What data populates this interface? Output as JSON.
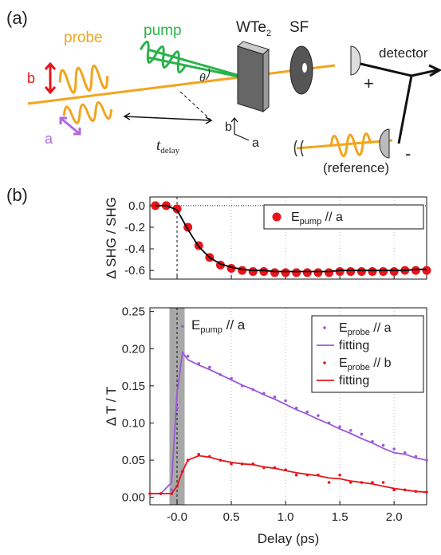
{
  "diagram": {
    "panel_label": "(a)",
    "probe": "probe",
    "pump": "pump",
    "sample": [
      "WTe",
      "2"
    ],
    "sf": "SF",
    "detector": "detector",
    "plus": "+",
    "minus": "-",
    "reference": "(reference)",
    "pol_b": "b",
    "pol_a": "a",
    "theta": "θ",
    "axis_b": "b",
    "axis_a": "a",
    "delay": [
      "t",
      "delay"
    ]
  },
  "panel_b_label": "(b)",
  "chart_data": [
    {
      "type": "line",
      "ylabel": "Δ SHG / SHG",
      "xlim": [
        -0.25,
        2.3
      ],
      "ylim": [
        -0.68,
        0.08
      ],
      "yticks": [
        {
          "value": 0,
          "label": "0.0"
        },
        -0.2,
        -0.4,
        -0.6
      ],
      "zero_line": true,
      "legend": "upper right",
      "x": [
        -0.2,
        -0.1,
        0.0,
        0.1,
        0.2,
        0.3,
        0.4,
        0.5,
        0.6,
        0.7,
        0.8,
        0.9,
        1.0,
        1.1,
        1.2,
        1.3,
        1.4,
        1.5,
        1.6,
        1.7,
        1.8,
        1.9,
        2.0,
        2.1,
        2.2,
        2.3
      ],
      "series": [
        {
          "name": [
            "E",
            "pump",
            " // a"
          ],
          "color": "#e8141a",
          "style": "markers",
          "values": [
            0.0,
            0.0,
            -0.03,
            -0.2,
            -0.37,
            -0.48,
            -0.55,
            -0.58,
            -0.6,
            -0.61,
            -0.61,
            -0.62,
            -0.62,
            -0.62,
            -0.62,
            -0.62,
            -0.62,
            -0.61,
            -0.61,
            -0.61,
            -0.61,
            -0.61,
            -0.61,
            -0.6,
            -0.6,
            -0.6
          ]
        },
        {
          "color": "#000000",
          "style": "line",
          "values": [
            0.0,
            0.0,
            -0.04,
            -0.22,
            -0.38,
            -0.48,
            -0.54,
            -0.57,
            -0.59,
            -0.6,
            -0.6,
            -0.61,
            -0.61,
            -0.61,
            -0.61,
            -0.61,
            -0.61,
            -0.6,
            -0.6,
            -0.6,
            -0.6,
            -0.6,
            -0.6,
            -0.6,
            -0.59,
            -0.59
          ]
        }
      ]
    },
    {
      "type": "line",
      "ylabel": "Δ T / T",
      "xlabel": "Delay (ps)",
      "annotation": [
        "E",
        "pump",
        " // a"
      ],
      "xlim": [
        -0.25,
        2.3
      ],
      "ylim": [
        -0.01,
        0.255
      ],
      "xticks": [
        {
          "value": 0,
          "label": "-0.0"
        },
        0.5,
        {
          "value": 1,
          "label": "1.0"
        },
        1.5,
        {
          "value": 2,
          "label": "2.0"
        }
      ],
      "yticks": [
        {
          "value": 0,
          "label": "0.00"
        },
        {
          "value": 0.05,
          "label": "0.05"
        },
        {
          "value": 0.1,
          "label": "0.10"
        },
        {
          "value": 0.15,
          "label": "0.15"
        },
        {
          "value": 0.2,
          "label": "0.20"
        },
        {
          "value": 0.25,
          "label": "0.25"
        }
      ],
      "shade": [
        -0.07,
        0.07
      ],
      "legend": "upper right",
      "x": [
        -0.25,
        -0.15,
        -0.05,
        0.0,
        0.05,
        0.1,
        0.2,
        0.3,
        0.4,
        0.5,
        0.6,
        0.7,
        0.8,
        0.9,
        1.0,
        1.1,
        1.2,
        1.3,
        1.4,
        1.5,
        1.6,
        1.7,
        1.8,
        1.9,
        2.0,
        2.1,
        2.2,
        2.3
      ],
      "series": [
        {
          "name": [
            "E",
            "probe",
            " // a"
          ],
          "color": "#9b59d6",
          "style": "markers",
          "values": [
            0.005,
            0.005,
            0.01,
            0.12,
            0.23,
            0.19,
            0.18,
            0.175,
            0.165,
            0.16,
            0.15,
            0.145,
            0.14,
            0.135,
            0.13,
            0.12,
            0.115,
            0.11,
            0.1,
            0.095,
            0.09,
            0.085,
            0.075,
            0.07,
            0.065,
            0.06,
            0.055,
            0.05
          ]
        },
        {
          "name": "fitting",
          "color": "#9b59d6",
          "style": "line",
          "values": [
            0.005,
            0.005,
            0.02,
            0.14,
            0.195,
            0.185,
            0.178,
            0.172,
            0.165,
            0.158,
            0.151,
            0.145,
            0.138,
            0.132,
            0.125,
            0.118,
            0.112,
            0.105,
            0.099,
            0.092,
            0.086,
            0.079,
            0.073,
            0.066,
            0.06,
            0.058,
            0.053,
            0.05
          ]
        },
        {
          "name": [
            "E",
            "probe",
            " // b"
          ],
          "color": "#e8141a",
          "style": "markers",
          "values": [
            0.005,
            0.005,
            0.005,
            0.015,
            0.035,
            0.05,
            0.058,
            0.055,
            0.05,
            0.045,
            0.045,
            0.045,
            0.04,
            0.04,
            0.037,
            0.03,
            0.03,
            0.03,
            0.02,
            0.03,
            0.02,
            0.02,
            0.02,
            0.02,
            0.01,
            0.01,
            0.008,
            0.007
          ]
        },
        {
          "name": "fitting",
          "color": "#e8141a",
          "style": "line",
          "values": [
            0.005,
            0.005,
            0.005,
            0.015,
            0.035,
            0.05,
            0.056,
            0.054,
            0.05,
            0.047,
            0.045,
            0.044,
            0.041,
            0.039,
            0.036,
            0.033,
            0.031,
            0.029,
            0.026,
            0.025,
            0.022,
            0.02,
            0.018,
            0.015,
            0.012,
            0.01,
            0.008,
            0.007
          ]
        }
      ]
    }
  ]
}
